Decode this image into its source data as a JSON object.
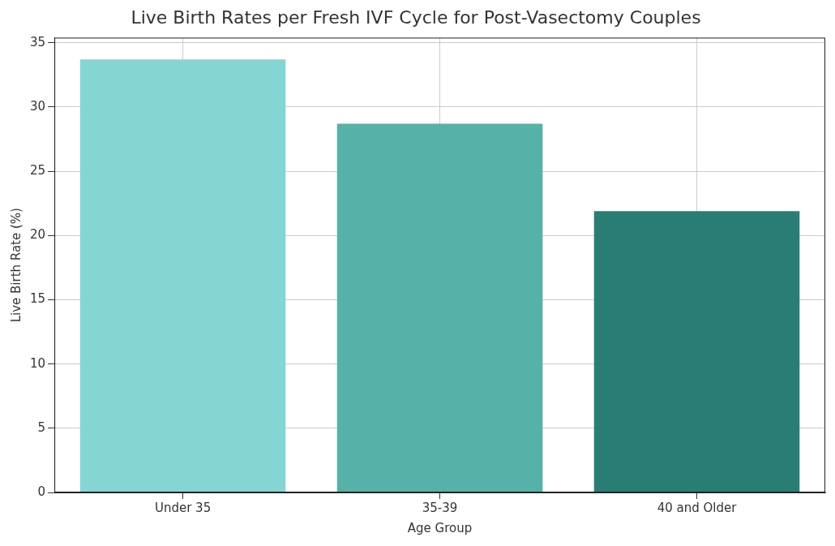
{
  "chart_data": {
    "type": "bar",
    "title": "Live Birth Rates per Fresh IVF Cycle for Post-Vasectomy Couples",
    "x_label": "Age Group",
    "y_label": "Live Birth Rate (%)",
    "categories": [
      "Under 35",
      "35-39",
      "40 and Older"
    ],
    "values": [
      33.7,
      28.7,
      21.9
    ],
    "colors": [
      "#86d5d5",
      "#56b1a8",
      "#2a7d75"
    ],
    "ylim": [
      0,
      35.4
    ],
    "yticks": [
      0,
      5,
      10,
      15,
      20,
      25,
      30,
      35
    ],
    "grid": true
  }
}
